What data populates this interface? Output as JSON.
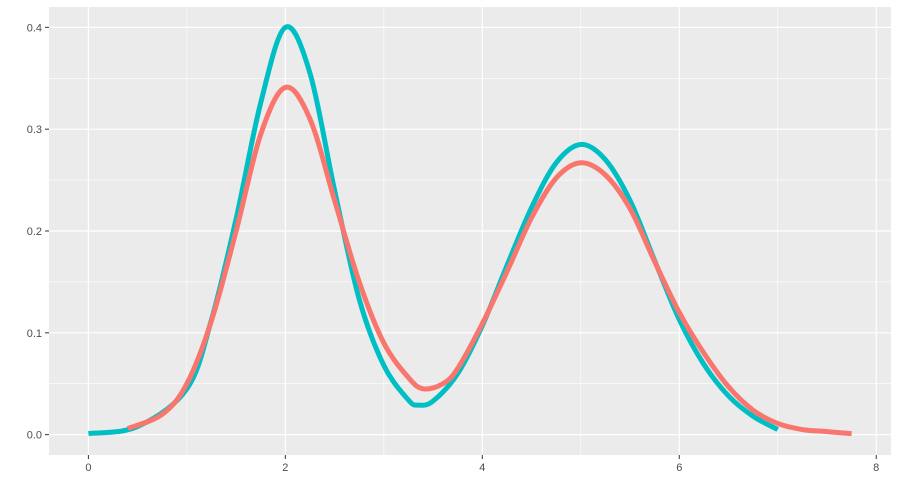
{
  "chart_data": {
    "type": "line",
    "title": "",
    "xlabel": "",
    "ylabel": "",
    "xlim": [
      -0.4,
      8.15
    ],
    "ylim": [
      -0.02,
      0.42
    ],
    "x_ticks": [
      0,
      2,
      4,
      6,
      8
    ],
    "x_tick_labels": [
      "0",
      "2",
      "4",
      "6",
      "8"
    ],
    "x_minor_ticks": [
      1,
      3,
      5,
      7
    ],
    "y_ticks": [
      0.0,
      0.1,
      0.2,
      0.3,
      0.4
    ],
    "y_tick_labels": [
      "0.0",
      "0.1",
      "0.2",
      "0.3",
      "0.4"
    ],
    "y_minor_ticks": [
      0.05,
      0.15,
      0.25,
      0.35
    ],
    "grid": true,
    "legend": "none",
    "panel_background": "#ebebeb",
    "grid_color": "#ffffff",
    "series": [
      {
        "color": "#00bfc4",
        "x": [
          0.0,
          0.5,
          1.0,
          1.25,
          1.5,
          1.75,
          2.0,
          2.25,
          2.5,
          2.75,
          3.0,
          3.25,
          3.35,
          3.5,
          3.75,
          4.0,
          4.25,
          4.5,
          4.75,
          5.0,
          5.25,
          5.5,
          5.75,
          6.0,
          6.25,
          6.5,
          6.75,
          7.0
        ],
        "y": [
          0.001,
          0.008,
          0.045,
          0.113,
          0.212,
          0.326,
          0.4,
          0.355,
          0.24,
          0.133,
          0.068,
          0.034,
          0.029,
          0.033,
          0.06,
          0.107,
          0.166,
          0.223,
          0.267,
          0.285,
          0.27,
          0.23,
          0.171,
          0.113,
          0.069,
          0.038,
          0.018,
          0.005
        ]
      },
      {
        "color": "#f8766d",
        "x": [
          0.4,
          0.75,
          1.0,
          1.25,
          1.5,
          1.75,
          2.0,
          2.25,
          2.5,
          2.75,
          3.0,
          3.25,
          3.4,
          3.6,
          3.75,
          4.0,
          4.25,
          4.5,
          4.75,
          5.0,
          5.25,
          5.5,
          5.75,
          6.0,
          6.25,
          6.5,
          6.75,
          7.0,
          7.25,
          7.5,
          7.75
        ],
        "y": [
          0.006,
          0.02,
          0.05,
          0.112,
          0.2,
          0.295,
          0.341,
          0.31,
          0.23,
          0.15,
          0.09,
          0.056,
          0.045,
          0.05,
          0.065,
          0.109,
          0.16,
          0.213,
          0.252,
          0.267,
          0.255,
          0.222,
          0.17,
          0.12,
          0.08,
          0.047,
          0.024,
          0.011,
          0.005,
          0.003,
          0.001
        ]
      }
    ]
  }
}
